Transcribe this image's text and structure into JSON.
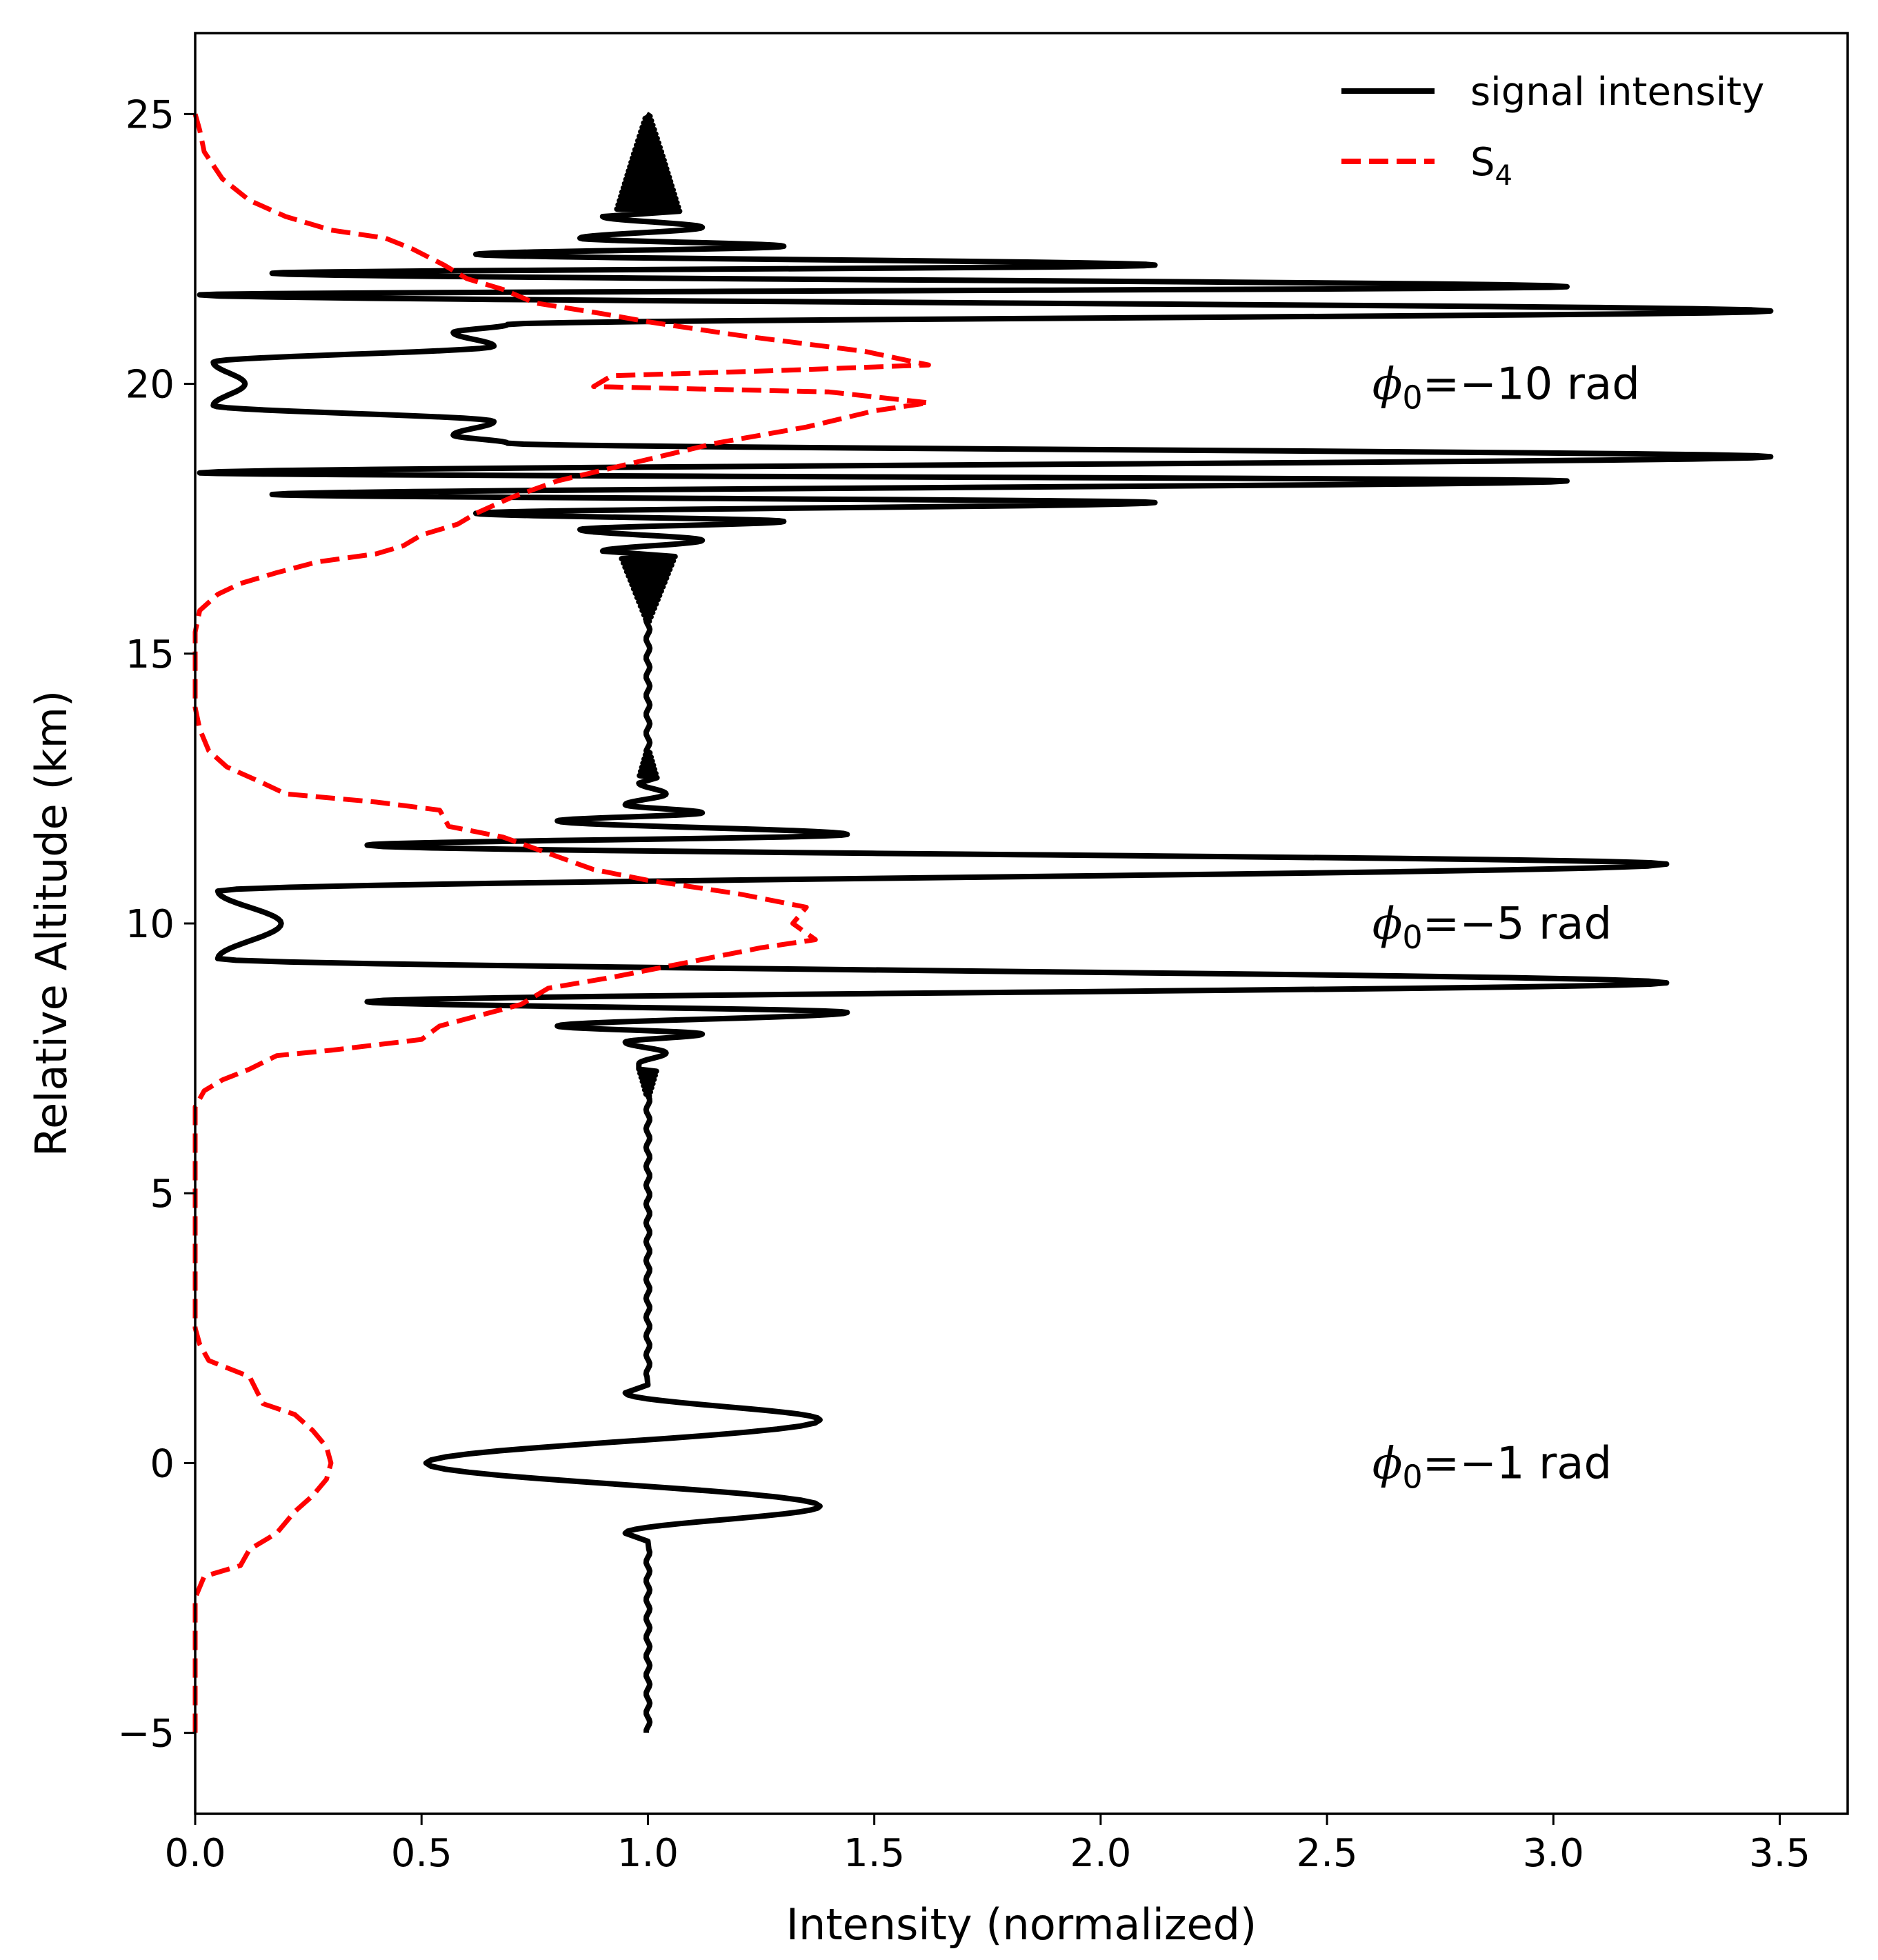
{
  "chart_data": {
    "type": "line",
    "title": "",
    "xlabel": "Intensity (normalized)",
    "ylabel": "Relative Altitude (km)",
    "xlim": [
      0.0,
      3.65
    ],
    "ylim": [
      -6.5,
      26.5
    ],
    "xticks": [
      0.0,
      0.5,
      1.0,
      1.5,
      2.0,
      2.5,
      3.0,
      3.5
    ],
    "xtick_labels": [
      "0.0",
      "0.5",
      "1.0",
      "1.5",
      "2.0",
      "2.5",
      "3.0",
      "3.5"
    ],
    "yticks": [
      -5,
      0,
      5,
      10,
      15,
      20,
      25
    ],
    "ytick_labels": [
      "−5",
      "0",
      "5",
      "10",
      "15",
      "20",
      "25"
    ],
    "grid": false,
    "legend": {
      "position": "top-right",
      "entries": [
        {
          "label": "signal intensity",
          "color": "#000000",
          "style": "solid"
        },
        {
          "label": "S",
          "subscript": "4",
          "color": "#ff0000",
          "style": "dashed"
        }
      ]
    },
    "annotations": [
      {
        "symbol": "ϕ",
        "subscript": "0",
        "text": "=−10 rad",
        "x": 2.6,
        "y": 20.0
      },
      {
        "symbol": "ϕ",
        "subscript": "0",
        "text": "=−5 rad",
        "x": 2.6,
        "y": 10.0
      },
      {
        "symbol": "ϕ",
        "subscript": "0",
        "text": "=−1 rad",
        "x": 2.6,
        "y": 0.0
      }
    ],
    "series": [
      {
        "name": "signal intensity",
        "color": "#000000",
        "style": "solid",
        "description": "Oscillatory intensity (x) versus altitude (y); baseline 1.0 with three scintillation events",
        "events": [
          {
            "center": 0.0,
            "phi0": -1,
            "peaks": [
              {
                "y": -1.3,
                "x": 0.95
              },
              {
                "y": -0.8,
                "x": 1.38
              },
              {
                "y": 0.0,
                "x": 0.51
              },
              {
                "y": 0.8,
                "x": 1.38
              },
              {
                "y": 1.3,
                "x": 0.95
              }
            ]
          },
          {
            "center": 10.0,
            "phi0": -5,
            "peaks": [
              {
                "y": 7.4,
                "x": 0.98
              },
              {
                "y": 7.6,
                "x": 1.04
              },
              {
                "y": 7.8,
                "x": 0.95
              },
              {
                "y": 7.95,
                "x": 1.12
              },
              {
                "y": 8.1,
                "x": 0.8
              },
              {
                "y": 8.35,
                "x": 1.44
              },
              {
                "y": 8.55,
                "x": 0.38
              },
              {
                "y": 8.9,
                "x": 3.25
              },
              {
                "y": 9.35,
                "x": 0.05
              },
              {
                "y": 10.0,
                "x": 0.19
              },
              {
                "y": 10.6,
                "x": 0.05
              },
              {
                "y": 11.1,
                "x": 3.25
              },
              {
                "y": 11.45,
                "x": 0.38
              },
              {
                "y": 11.65,
                "x": 1.44
              },
              {
                "y": 11.9,
                "x": 0.8
              },
              {
                "y": 12.05,
                "x": 1.12
              },
              {
                "y": 12.2,
                "x": 0.95
              },
              {
                "y": 12.4,
                "x": 1.04
              },
              {
                "y": 12.6,
                "x": 0.98
              }
            ]
          },
          {
            "center": 20.0,
            "phi0": -10,
            "peaks": [
              {
                "y": 16.9,
                "x": 0.9
              },
              {
                "y": 17.1,
                "x": 1.12
              },
              {
                "y": 17.3,
                "x": 0.85
              },
              {
                "y": 17.45,
                "x": 1.3
              },
              {
                "y": 17.6,
                "x": 0.62
              },
              {
                "y": 17.8,
                "x": 2.12
              },
              {
                "y": 17.95,
                "x": 0.17
              },
              {
                "y": 18.2,
                "x": 3.03
              },
              {
                "y": 18.35,
                "x": 0.01
              },
              {
                "y": 18.65,
                "x": 3.48
              },
              {
                "y": 18.9,
                "x": 0.69
              },
              {
                "y": 19.05,
                "x": 0.57
              },
              {
                "y": 19.3,
                "x": 0.66
              },
              {
                "y": 19.6,
                "x": 0.04
              },
              {
                "y": 20.0,
                "x": 0.11
              },
              {
                "y": 20.4,
                "x": 0.04
              },
              {
                "y": 20.7,
                "x": 0.66
              },
              {
                "y": 20.95,
                "x": 0.57
              },
              {
                "y": 21.1,
                "x": 0.69
              },
              {
                "y": 21.35,
                "x": 3.48
              },
              {
                "y": 21.65,
                "x": 0.01
              },
              {
                "y": 21.8,
                "x": 3.03
              },
              {
                "y": 22.05,
                "x": 0.17
              },
              {
                "y": 22.2,
                "x": 2.12
              },
              {
                "y": 22.4,
                "x": 0.62
              },
              {
                "y": 22.55,
                "x": 1.3
              },
              {
                "y": 22.7,
                "x": 0.85
              },
              {
                "y": 22.9,
                "x": 1.12
              },
              {
                "y": 23.1,
                "x": 0.9
              }
            ]
          }
        ],
        "y_range": [
          -5.0,
          25.0
        ],
        "baseline": 1.0
      },
      {
        "name": "S4",
        "color": "#ff0000",
        "style": "dashed",
        "points": [
          [
            0.0,
            -5.0
          ],
          [
            0.0,
            -2.5
          ],
          [
            0.02,
            -2.1
          ],
          [
            0.1,
            -1.9
          ],
          [
            0.12,
            -1.6
          ],
          [
            0.18,
            -1.3
          ],
          [
            0.22,
            -0.9
          ],
          [
            0.26,
            -0.6
          ],
          [
            0.29,
            -0.3
          ],
          [
            0.3,
            0.0
          ],
          [
            0.29,
            0.3
          ],
          [
            0.26,
            0.6
          ],
          [
            0.22,
            0.9
          ],
          [
            0.15,
            1.1
          ],
          [
            0.12,
            1.6
          ],
          [
            0.03,
            1.9
          ],
          [
            0.01,
            2.2
          ],
          [
            0.0,
            2.5
          ],
          [
            0.0,
            6.6
          ],
          [
            0.02,
            6.9
          ],
          [
            0.06,
            7.1
          ],
          [
            0.12,
            7.3
          ],
          [
            0.18,
            7.55
          ],
          [
            0.3,
            7.65
          ],
          [
            0.5,
            7.85
          ],
          [
            0.54,
            8.1
          ],
          [
            0.63,
            8.3
          ],
          [
            0.72,
            8.5
          ],
          [
            0.78,
            8.8
          ],
          [
            0.92,
            9.0
          ],
          [
            1.1,
            9.3
          ],
          [
            1.25,
            9.55
          ],
          [
            1.37,
            9.7
          ],
          [
            1.32,
            10.0
          ],
          [
            1.35,
            10.3
          ],
          [
            1.2,
            10.55
          ],
          [
            1.0,
            10.8
          ],
          [
            0.88,
            11.0
          ],
          [
            0.78,
            11.3
          ],
          [
            0.68,
            11.6
          ],
          [
            0.56,
            11.8
          ],
          [
            0.54,
            12.1
          ],
          [
            0.4,
            12.25
          ],
          [
            0.2,
            12.4
          ],
          [
            0.15,
            12.6
          ],
          [
            0.07,
            12.9
          ],
          [
            0.03,
            13.2
          ],
          [
            0.01,
            13.6
          ],
          [
            0.0,
            14.0
          ],
          [
            0.0,
            15.4
          ],
          [
            0.01,
            15.8
          ],
          [
            0.05,
            16.1
          ],
          [
            0.1,
            16.3
          ],
          [
            0.18,
            16.5
          ],
          [
            0.27,
            16.7
          ],
          [
            0.4,
            16.85
          ],
          [
            0.46,
            17.0
          ],
          [
            0.5,
            17.2
          ],
          [
            0.58,
            17.4
          ],
          [
            0.62,
            17.6
          ],
          [
            0.7,
            17.9
          ],
          [
            0.8,
            18.2
          ],
          [
            0.9,
            18.4
          ],
          [
            1.0,
            18.6
          ],
          [
            1.15,
            18.9
          ],
          [
            1.35,
            19.2
          ],
          [
            1.5,
            19.5
          ],
          [
            1.62,
            19.65
          ],
          [
            1.4,
            19.85
          ],
          [
            0.88,
            19.95
          ],
          [
            0.92,
            20.15
          ],
          [
            1.3,
            20.25
          ],
          [
            1.62,
            20.35
          ],
          [
            1.48,
            20.6
          ],
          [
            1.2,
            20.9
          ],
          [
            1.0,
            21.15
          ],
          [
            0.9,
            21.3
          ],
          [
            0.75,
            21.5
          ],
          [
            0.68,
            21.75
          ],
          [
            0.6,
            21.95
          ],
          [
            0.55,
            22.2
          ],
          [
            0.48,
            22.5
          ],
          [
            0.42,
            22.7
          ],
          [
            0.3,
            22.85
          ],
          [
            0.2,
            23.1
          ],
          [
            0.12,
            23.4
          ],
          [
            0.06,
            23.8
          ],
          [
            0.02,
            24.3
          ],
          [
            0.01,
            24.7
          ],
          [
            0.0,
            25.0
          ]
        ]
      }
    ]
  }
}
